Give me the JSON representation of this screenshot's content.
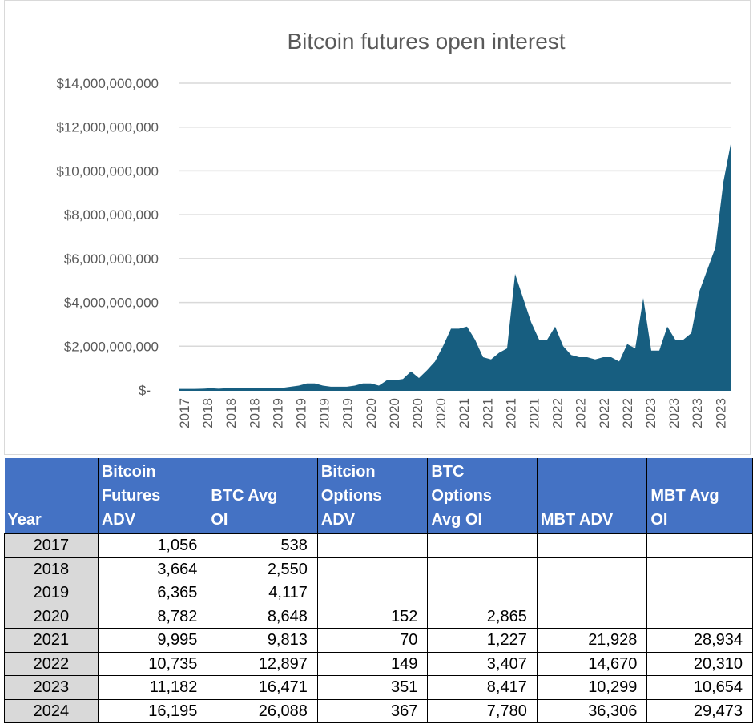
{
  "chart_data": {
    "type": "area",
    "title": "Bitcoin futures open interest",
    "xlabel": "",
    "ylabel": "",
    "color": "#175e80",
    "grid": true,
    "ylim": [
      0,
      14000000000
    ],
    "y_ticks": [
      0,
      2000000000,
      4000000000,
      6000000000,
      8000000000,
      10000000000,
      12000000000,
      14000000000
    ],
    "y_tick_labels": [
      "$-",
      "$2,000,000,000",
      "$4,000,000,000",
      "$6,000,000,000",
      "$8,000,000,000",
      "$10,000,000,000",
      "$12,000,000,000",
      "$14,000,000,000"
    ],
    "x_tick_labels": [
      "2017",
      "2018",
      "2018",
      "2018",
      "2019",
      "2019",
      "2019",
      "2019",
      "2020",
      "2020",
      "2020",
      "2020",
      "2021",
      "2021",
      "2021",
      "2021",
      "2022",
      "2022",
      "2022",
      "2022",
      "2023",
      "2023",
      "2023",
      "2023"
    ],
    "values": [
      50000000.0,
      50000000.0,
      50000000.0,
      60000000.0,
      80000000.0,
      60000000.0,
      80000000.0,
      100000000.0,
      80000000.0,
      80000000.0,
      80000000.0,
      80000000.0,
      100000000.0,
      100000000.0,
      150000000.0,
      200000000.0,
      300000000.0,
      300000000.0,
      200000000.0,
      150000000.0,
      150000000.0,
      150000000.0,
      200000000.0,
      300000000.0,
      300000000.0,
      200000000.0,
      450000000.0,
      450000000.0,
      500000000.0,
      850000000.0,
      550000000.0,
      900000000.0,
      1300000000.0,
      2000000000.0,
      2800000000.0,
      2800000000.0,
      2900000000.0,
      2300000000.0,
      1500000000.0,
      1400000000.0,
      1700000000.0,
      1900000000.0,
      5300000000.0,
      4200000000.0,
      3100000000.0,
      2300000000.0,
      2300000000.0,
      2900000000.0,
      2000000000.0,
      1600000000.0,
      1500000000.0,
      1500000000.0,
      1400000000.0,
      1500000000.0,
      1500000000.0,
      1300000000.0,
      2100000000.0,
      1900000000.0,
      4200000000.0,
      1800000000.0,
      1800000000.0,
      2900000000.0,
      2300000000.0,
      2300000000.0,
      2600000000.0,
      4500000000.0,
      5500000000.0,
      6500000000.0,
      9500000000.0,
      11400000000.0
    ]
  },
  "table": {
    "headers": [
      [
        "Year"
      ],
      [
        "Bitcoin",
        "Futures",
        "ADV"
      ],
      [
        "BTC  Avg",
        "OI"
      ],
      [
        "Bitcion",
        "Options",
        "ADV"
      ],
      [
        "BTC",
        "Options",
        "Avg OI"
      ],
      [
        "MBT ADV"
      ],
      [
        "MBT Avg",
        "OI"
      ]
    ],
    "header_color": "#4472C4",
    "rows": [
      [
        "2017",
        "1,056",
        "538",
        "",
        "",
        "",
        ""
      ],
      [
        "2018",
        "3,664",
        "2,550",
        "",
        "",
        "",
        ""
      ],
      [
        "2019",
        "6,365",
        "4,117",
        "",
        "",
        "",
        ""
      ],
      [
        "2020",
        "8,782",
        "8,648",
        "152",
        "2,865",
        "",
        ""
      ],
      [
        "2021",
        "9,995",
        "9,813",
        "70",
        "1,227",
        "21,928",
        "28,934"
      ],
      [
        "2022",
        "10,735",
        "12,897",
        "149",
        "3,407",
        "14,670",
        "20,310"
      ],
      [
        "2023",
        "11,182",
        "16,471",
        "351",
        "8,417",
        "10,299",
        "10,654"
      ],
      [
        "2024",
        "16,195",
        "26,088",
        "367",
        "7,780",
        "36,306",
        "29,473"
      ]
    ]
  }
}
